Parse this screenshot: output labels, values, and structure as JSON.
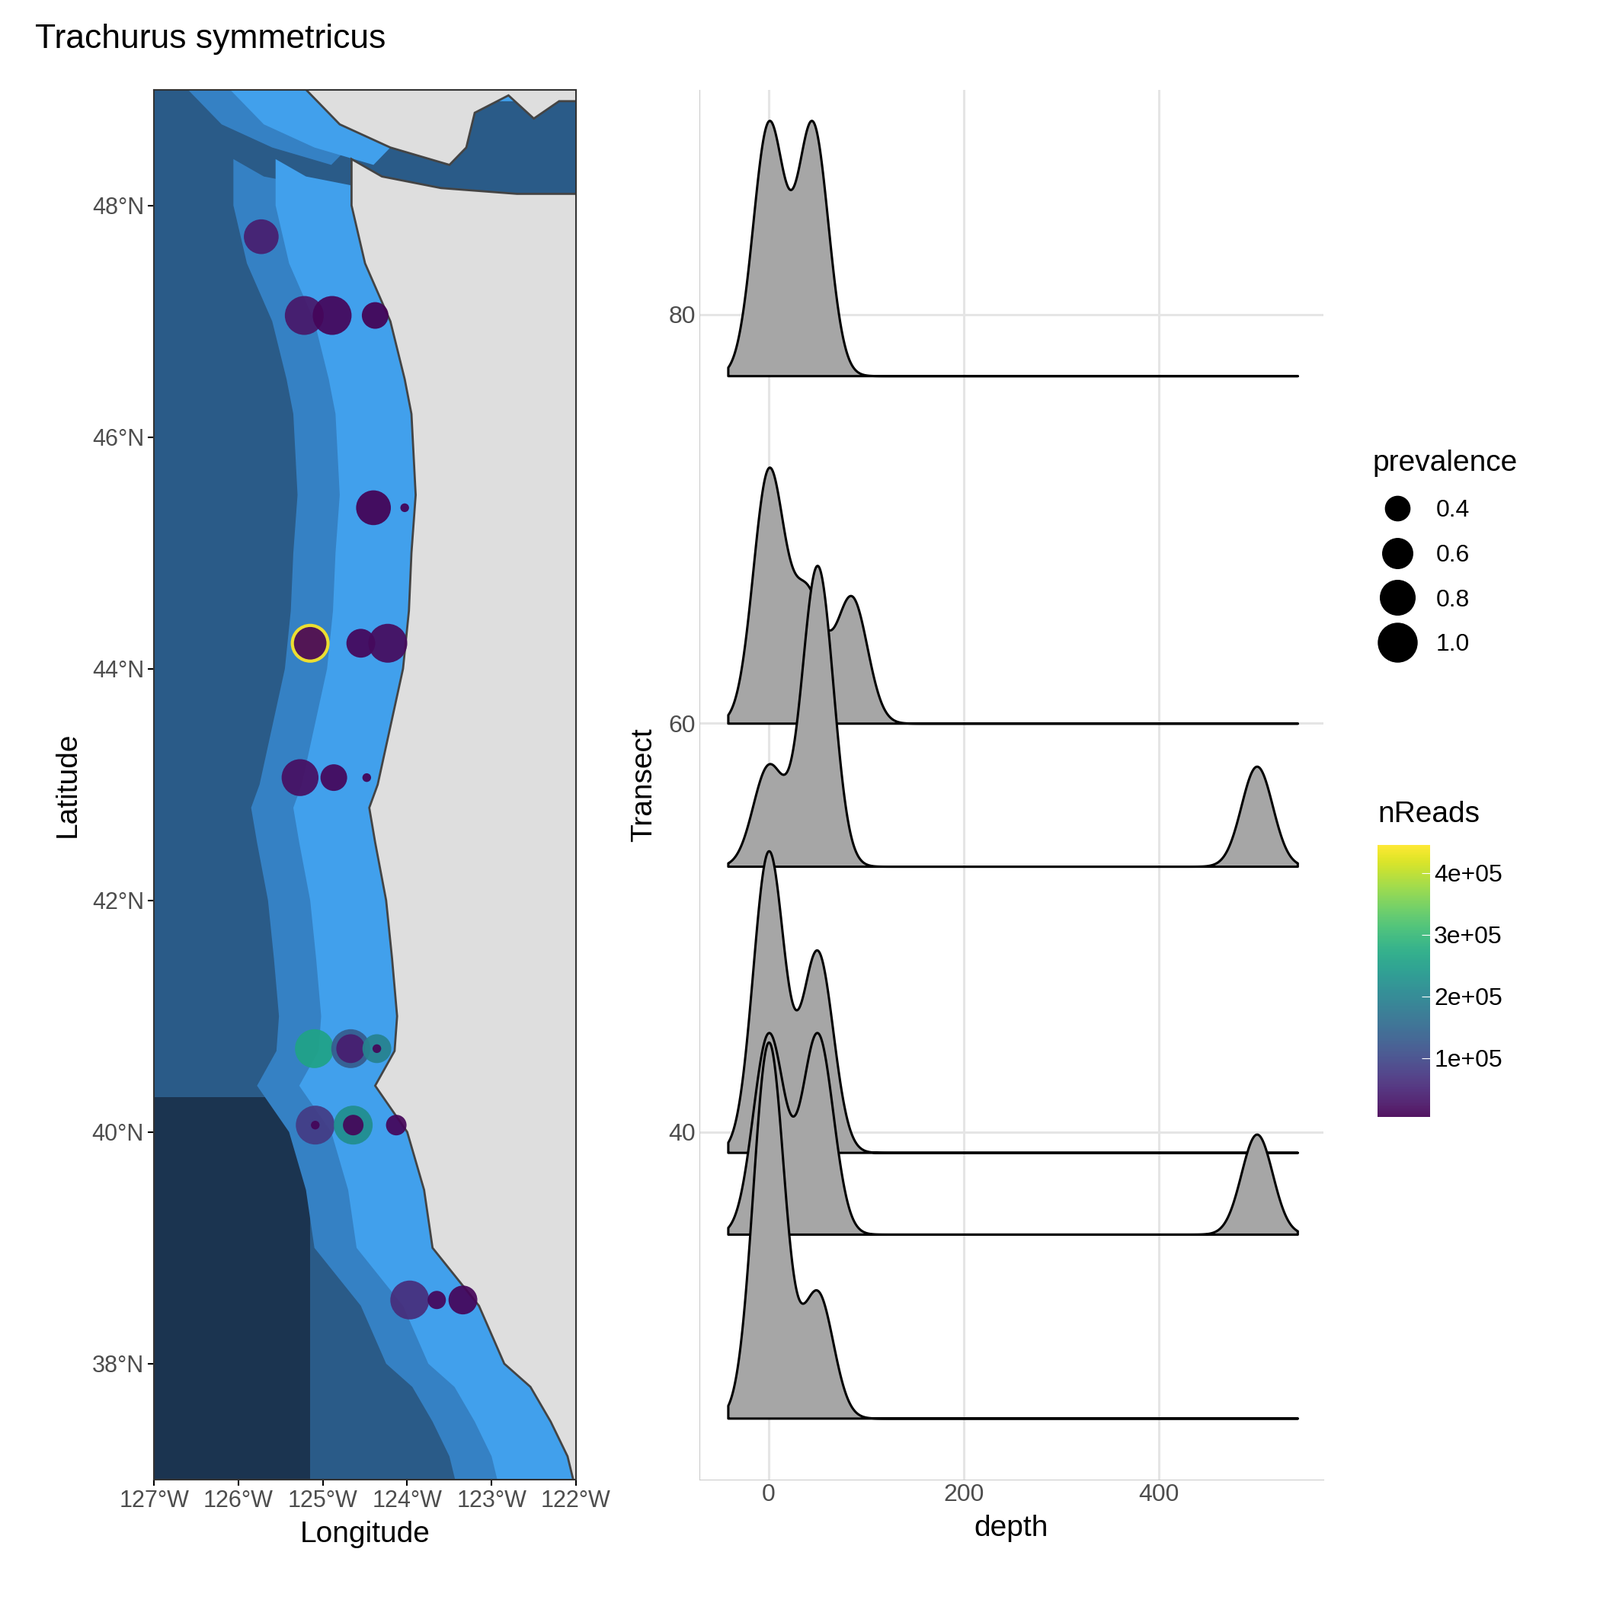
{
  "chart_data": [
    {
      "type": "map",
      "title": "Trachurus symmetricus",
      "x_label": "Longitude",
      "y_label": "Latitude",
      "xlim": [
        -127,
        -122
      ],
      "ylim": [
        37,
        49
      ],
      "xticks": [
        {
          "value": -127,
          "label": "127°W"
        },
        {
          "value": -126,
          "label": "126°W"
        },
        {
          "value": -125,
          "label": "125°W"
        },
        {
          "value": -124,
          "label": "124°W"
        },
        {
          "value": -123,
          "label": "123°W"
        },
        {
          "value": -122,
          "label": "122°W"
        }
      ],
      "yticks": [
        {
          "value": 38,
          "label": "38°N"
        },
        {
          "value": 40,
          "label": "40°N"
        },
        {
          "value": 42,
          "label": "42°N"
        },
        {
          "value": 44,
          "label": "44°N"
        },
        {
          "value": 46,
          "label": "46°N"
        },
        {
          "value": 48,
          "label": "48°N"
        }
      ],
      "points": {
        "lon": [
          -125.73,
          -125.22,
          -124.89,
          -124.38,
          -124.4,
          -124.03,
          -125.15,
          -125.15,
          -124.55,
          -124.23,
          -125.27,
          -124.87,
          -124.48,
          -125.1,
          -124.67,
          -124.67,
          -124.36,
          -124.36,
          -125.09,
          -125.09,
          -124.64,
          -124.64,
          -124.13,
          -123.97,
          -123.65,
          -123.34
        ],
        "lat": [
          47.73,
          47.05,
          47.05,
          47.05,
          45.39,
          45.39,
          44.22,
          44.22,
          44.22,
          44.22,
          43.06,
          43.06,
          43.06,
          40.72,
          40.72,
          40.72,
          40.72,
          40.72,
          40.06,
          40.06,
          40.06,
          40.06,
          40.06,
          38.55,
          38.55,
          38.55
        ],
        "prevalence": [
          0.8,
          1.0,
          1.0,
          0.47,
          0.8,
          0.05,
          1.0,
          0.7,
          0.55,
          1.0,
          0.9,
          0.47,
          0.05,
          1.0,
          1.0,
          0.55,
          0.55,
          0.05,
          1.0,
          0.05,
          1.0,
          0.28,
          0.28,
          1.0,
          0.22,
          0.55
        ],
        "nReads": [
          40000,
          30000,
          10000,
          5000,
          5000,
          5000,
          445000,
          10000,
          10000,
          15000,
          20000,
          10000,
          5000,
          260000,
          130000,
          40000,
          200000,
          10000,
          80000,
          10000,
          220000,
          10000,
          10000,
          60000,
          10000,
          10000
        ]
      },
      "size_legend": {
        "title": "prevalence",
        "ticks": [
          {
            "value": 0.4,
            "label": "0.4"
          },
          {
            "value": 0.6,
            "label": "0.6"
          },
          {
            "value": 0.8,
            "label": "0.8"
          },
          {
            "value": 1.0,
            "label": "1.0"
          }
        ]
      },
      "colorbar": {
        "title": "nReads",
        "range": [
          4000,
          445000
        ],
        "ticks": [
          {
            "value": 100000,
            "label": "1e+05"
          },
          {
            "value": 200000,
            "label": "2e+05"
          },
          {
            "value": 300000,
            "label": "3e+05"
          },
          {
            "value": 400000,
            "label": "4e+05"
          }
        ]
      },
      "land": [
        [
          [
            -124.66,
            48.4
          ],
          [
            -124.66,
            48.0
          ],
          [
            -124.5,
            47.5
          ],
          [
            -124.2,
            47.0
          ],
          [
            -124.03,
            46.5
          ],
          [
            -123.95,
            46.2
          ],
          [
            -123.9,
            45.5
          ],
          [
            -123.95,
            45.0
          ],
          [
            -123.98,
            44.5
          ],
          [
            -124.05,
            44.0
          ],
          [
            -124.2,
            43.5
          ],
          [
            -124.35,
            43.0
          ],
          [
            -124.45,
            42.8
          ],
          [
            -124.38,
            42.5
          ],
          [
            -124.25,
            42.0
          ],
          [
            -124.18,
            41.5
          ],
          [
            -124.12,
            41.0
          ],
          [
            -124.15,
            40.7
          ],
          [
            -124.38,
            40.4
          ],
          [
            -124.0,
            40.0
          ],
          [
            -123.8,
            39.5
          ],
          [
            -123.7,
            39.0
          ],
          [
            -123.15,
            38.5
          ],
          [
            -122.85,
            38.0
          ],
          [
            -122.54,
            37.8
          ],
          [
            -122.3,
            37.5
          ],
          [
            -122.1,
            37.2
          ],
          [
            -122.0,
            36.9
          ],
          [
            -120.5,
            36.9
          ],
          [
            -120.5,
            48.1
          ],
          [
            -122.7,
            48.1
          ],
          [
            -123.6,
            48.15
          ],
          [
            -124.3,
            48.25
          ]
        ],
        [
          [
            -125.3,
            49.3
          ],
          [
            -125.2,
            49.0
          ],
          [
            -124.8,
            48.7
          ],
          [
            -124.2,
            48.5
          ],
          [
            -123.5,
            48.35
          ],
          [
            -123.3,
            48.5
          ],
          [
            -123.2,
            48.8
          ],
          [
            -122.8,
            48.95
          ],
          [
            -122.5,
            48.75
          ],
          [
            -122.2,
            48.9
          ],
          [
            -120.5,
            48.9
          ],
          [
            -120.5,
            49.3
          ]
        ]
      ]
    },
    {
      "type": "ridgeline",
      "x_label": "depth",
      "y_label": "Transect",
      "xlim": [
        -71,
        568
      ],
      "ylim": [
        23,
        91
      ],
      "xticks": [
        0,
        200,
        400
      ],
      "yticks": [
        40,
        60,
        80
      ],
      "grid": true,
      "color": "#a6a6a6",
      "series": [
        {
          "transect": 77,
          "depths": [
            0,
            45
          ]
        },
        {
          "transect": 60,
          "depths": [
            0,
            0,
            40,
            85
          ]
        },
        {
          "transect": 53,
          "depths": [
            0,
            50,
            50,
            50,
            500
          ]
        },
        {
          "transect": 39,
          "depths": [
            0,
            0,
            0,
            50,
            50
          ]
        },
        {
          "transect": 35,
          "depths": [
            0,
            0,
            50,
            50,
            500
          ]
        },
        {
          "transect": 26,
          "depths": [
            0,
            0,
            0,
            50
          ]
        }
      ]
    }
  ]
}
